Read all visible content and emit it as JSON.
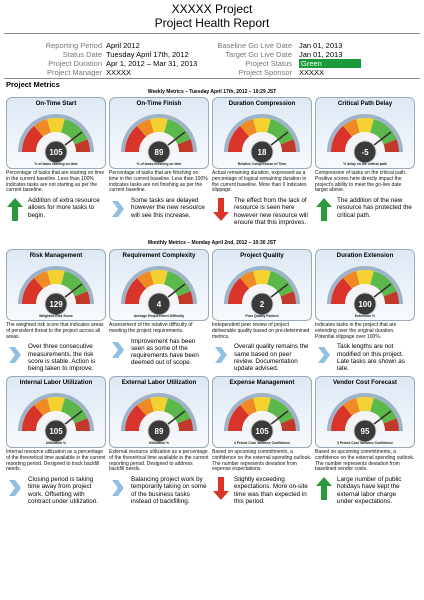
{
  "header": {
    "title": "XXXXX Project",
    "subtitle": "Project Health Report"
  },
  "info": {
    "left": [
      {
        "label": "Reporting Period",
        "value": "April 2012"
      },
      {
        "label": "Status Date",
        "value": "Tuesday April 17th, 2012"
      },
      {
        "label": "Project Duration",
        "value": "Apr 1, 2012 – Mar 31, 2013"
      },
      {
        "label": "Project Manager",
        "value": "XXXXX"
      }
    ],
    "right": [
      {
        "label": "Baseline Go Live Date",
        "value": "Jan 01, 2013"
      },
      {
        "label": "Target Go Live Date",
        "value": "Jan 01, 2013"
      },
      {
        "label": "Project Status",
        "value": "Green",
        "highlight": "#1a9a3a"
      },
      {
        "label": "Project Sponsor",
        "value": "XXXXX"
      }
    ]
  },
  "section_title": "Project Metrics",
  "sections": [
    {
      "title": "Weekly Metrics – Tuesday April 17th, 2012 – 10:29 JST",
      "cards": [
        {
          "title": "On-Time Start",
          "value": "105",
          "gauge_label": "% of tasks starting on time",
          "description": "Percentage of tasks that are starting on time in the current baseline. Less than 100% indicates tasks are not starting as per the current baseline.",
          "trend": "up",
          "note": "Addition of extra resource allows for more tasks to begin."
        },
        {
          "title": "On-Time Finish",
          "value": "89",
          "gauge_label": "% of tasks finishing on time",
          "description": "Percentage of tasks that are finishing on time in the current baseline. Less than 100% indicates tasks are not finishing as per the current baseline.",
          "trend": "right",
          "note": "Some tasks are delayed however the new resource will see this increase."
        },
        {
          "title": "Duration Compression",
          "value": "18",
          "gauge_label": "Relative Compression of Time",
          "description": "Actual remaining duration, expressed as a percentage of logical remaining duration in the current baseline. More than 0 indicates slippage.",
          "trend": "down",
          "note": "The effect from the lack of resource is seen here however new resource will ensure that this improves."
        },
        {
          "title": "Critical Path Delay",
          "value": "-5",
          "gauge_label": "% delay on the critical path",
          "description": "Compression of tasks on the critical path. Positive scores here directly impact the project's ability to meet the go-live date target above.",
          "trend": "up",
          "note": "The addition of the new resource has protected the critical path."
        }
      ]
    },
    {
      "title": "Monthly Metrics – Monday April 2nd, 2012 – 10:30 JST",
      "cards": [
        {
          "title": "Risk Management",
          "value": "129",
          "gauge_label": "Weighted Risk Score",
          "description": "The weighted risk score that indicates areas of persistent threat to the project across all areas.",
          "trend": "right",
          "note": "Over three consecutive measurements, the risk score is stable. Action is being taken to improve."
        },
        {
          "title": "Requirement Complexity",
          "value": "4",
          "gauge_label": "Average Requirement Difficulty",
          "description": "Assessment of the relative difficulty of meeting the project requirements.",
          "trend": "right",
          "note": "Improvement has been seen as some of the requirements have been deemed out of scope."
        },
        {
          "title": "Project Quality",
          "value": "2",
          "gauge_label": "Poor Quality Factors",
          "description": "Independent peer review of project deliverable quality based on pre-determined metrics.",
          "trend": "right",
          "note": "Overall quality remains the same based on peer review. Documentation update advised."
        },
        {
          "title": "Duration Extension",
          "value": "100",
          "gauge_label": "Extension %",
          "description": "Indicates tasks in the project that are extending over the original duration. Potential slippage over 100%.",
          "trend": "right",
          "note": "Task lengths are not modified on this project. Late tasks are shown as late."
        },
        {
          "title": "Internal Labor Utilization",
          "value": "105",
          "gauge_label": "Utilization %",
          "description": "Internal resource utilization as a percentage of the theoretical time available in the current reporting period. Designed to track backfill needs.",
          "trend": "right",
          "note": "Closing period is taking time away from project work. Offsetting with contract under utilization."
        },
        {
          "title": "External Labor Utilization",
          "value": "89",
          "gauge_label": "Utilization %",
          "description": "External resource utilization as a percentage of the theoretical time available in the current reporting period. Designed to address backfill needs.",
          "trend": "right",
          "note": "Balancing project work by temporarily taking on some of the business tasks instead of backfilling."
        },
        {
          "title": "Expense Management",
          "value": "105",
          "gauge_label": "3 Period Cost Variance Confidence",
          "description": "Based on upcoming commitments, a confidence on the external spending outlook. The number represents deviation from expense expectations.",
          "trend": "down",
          "note": "Slightly exceeding expectations. More on-site time was than expected in this period."
        },
        {
          "title": "Vendor Cost Forecast",
          "value": "95",
          "gauge_label": "3 Period Cost Variance Confidence",
          "description": "Based on upcoming commitments, a confidence on the external spending outlook. The number represents deviation from baselined vendor costs.",
          "trend": "up",
          "note": "Large number of public holidays have kept the external labor charge under expectations."
        }
      ]
    }
  ]
}
